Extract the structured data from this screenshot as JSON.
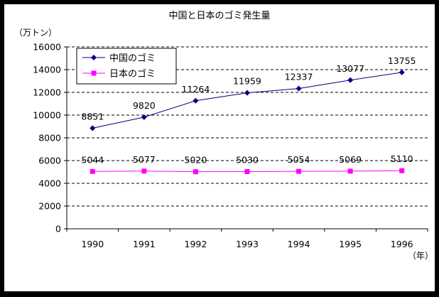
{
  "chart_data": {
    "type": "line",
    "title": "中国と日本のゴミ発生量",
    "ylabel": "（万トン）",
    "xlabel": "（年）",
    "categories": [
      "1990",
      "1991",
      "1992",
      "1993",
      "1994",
      "1995",
      "1996"
    ],
    "ylim": [
      0,
      16000
    ],
    "yticks": [
      "0",
      "2000",
      "4000",
      "6000",
      "8000",
      "10000",
      "12000",
      "14000",
      "16000"
    ],
    "grid": "horizontal-dashed",
    "legend_position": "top-left",
    "series": [
      {
        "name": "中国のゴミ",
        "color": "#000080",
        "marker": "diamond",
        "values": [
          8851,
          9820,
          11264,
          11959,
          12337,
          13077,
          13755
        ],
        "labels": [
          "8851",
          "9820",
          "11264",
          "11959",
          "12337",
          "13077",
          "13755"
        ]
      },
      {
        "name": "日本のゴミ",
        "color": "#FF00FF",
        "marker": "square",
        "values": [
          5044,
          5077,
          5020,
          5030,
          5054,
          5069,
          5110
        ],
        "labels": [
          "5044",
          "5077",
          "5020",
          "5030",
          "5054",
          "5069",
          "5110"
        ]
      }
    ]
  }
}
